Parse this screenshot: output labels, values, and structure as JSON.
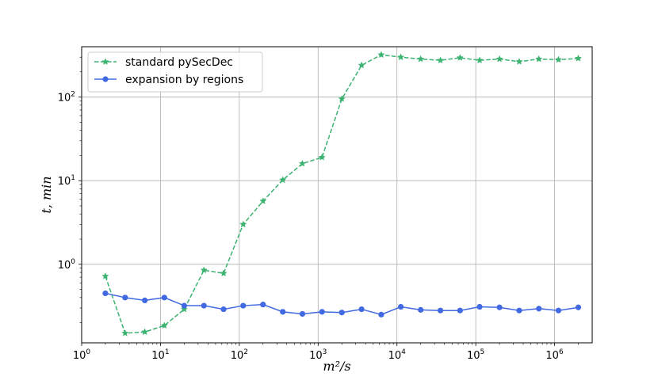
{
  "chart_data": {
    "type": "line",
    "xscale": "log",
    "yscale": "log",
    "xlim": [
      1,
      3000000
    ],
    "ylim": [
      0.115,
      400
    ],
    "grid": true,
    "legend_placement": "top-left",
    "xlabel": "m²/s",
    "ylabel": "t, min",
    "x_ticks": [
      {
        "value": 1,
        "mant": "10",
        "exp": "0"
      },
      {
        "value": 10,
        "mant": "10",
        "exp": "1"
      },
      {
        "value": 100,
        "mant": "10",
        "exp": "2"
      },
      {
        "value": 1000,
        "mant": "10",
        "exp": "3"
      },
      {
        "value": 10000,
        "mant": "10",
        "exp": "4"
      },
      {
        "value": 100000,
        "mant": "10",
        "exp": "5"
      },
      {
        "value": 1000000,
        "mant": "10",
        "exp": "6"
      }
    ],
    "y_ticks": [
      {
        "value": 1,
        "mant": "10",
        "exp": "0"
      },
      {
        "value": 10,
        "mant": "10",
        "exp": "1"
      },
      {
        "value": 100,
        "mant": "10",
        "exp": "2"
      }
    ],
    "x": [
      2,
      3.56,
      6.32,
      11.2,
      20,
      35.6,
      63.2,
      112,
      200,
      356,
      632,
      1120,
      2000,
      3560,
      6320,
      11200,
      20000,
      35600,
      63200,
      112000,
      200000,
      356000,
      632000,
      1120000,
      2000000
    ],
    "series": [
      {
        "name": "standard pySecDec",
        "color": "#3cb371",
        "style": "dashed",
        "marker": "star",
        "values": [
          0.72,
          0.15,
          0.155,
          0.185,
          0.29,
          0.85,
          0.78,
          3.0,
          5.7,
          10.2,
          16,
          19,
          95,
          240,
          320,
          300,
          285,
          275,
          295,
          275,
          285,
          265,
          285,
          280,
          290
        ]
      },
      {
        "name": "expansion by regions",
        "color": "#4169e1",
        "style": "solid",
        "marker": "circle",
        "values": [
          0.45,
          0.4,
          0.37,
          0.4,
          0.32,
          0.32,
          0.29,
          0.32,
          0.33,
          0.27,
          0.255,
          0.27,
          0.265,
          0.29,
          0.25,
          0.31,
          0.285,
          0.28,
          0.28,
          0.31,
          0.305,
          0.28,
          0.295,
          0.28,
          0.305
        ]
      }
    ]
  }
}
